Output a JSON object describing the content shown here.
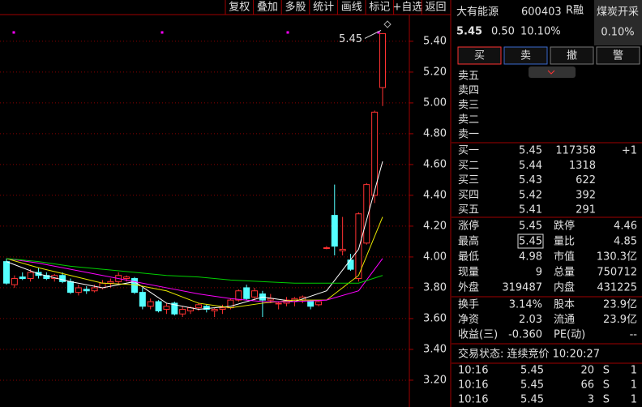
{
  "toolbar": [
    "复权",
    "叠加",
    "多股",
    "统计",
    "画线",
    "标记",
    "+自选",
    "返回"
  ],
  "chart_data": {
    "type": "candlestick",
    "ylim": [
      3.026,
      5.668
    ],
    "yticks": [
      {
        "value": 3.2,
        "label": "3.20"
      },
      {
        "value": 3.4,
        "label": "3.40"
      },
      {
        "value": 3.6,
        "label": "3.60"
      },
      {
        "value": 3.8,
        "label": "3.80"
      },
      {
        "value": 4.0,
        "label": "4.00"
      },
      {
        "value": 4.2,
        "label": "4.20"
      },
      {
        "value": 4.4,
        "label": "4.40"
      },
      {
        "value": 4.6,
        "label": "4.60"
      },
      {
        "value": 4.8,
        "label": "4.80"
      },
      {
        "value": 5.0,
        "label": "5.00"
      },
      {
        "value": 5.2,
        "label": "5.20"
      },
      {
        "value": 5.4,
        "label": "5.40"
      }
    ],
    "up_color": "#ff3232",
    "down_color": "#54ffff",
    "ohlc": [
      [
        3.97,
        3.99,
        3.82,
        3.83
      ],
      [
        3.82,
        3.88,
        3.8,
        3.86
      ],
      [
        3.87,
        3.9,
        3.85,
        3.86
      ],
      [
        3.86,
        3.92,
        3.84,
        3.9
      ],
      [
        3.9,
        3.93,
        3.86,
        3.88
      ],
      [
        3.88,
        3.9,
        3.85,
        3.86
      ],
      [
        3.86,
        3.89,
        3.84,
        3.88
      ],
      [
        3.88,
        3.9,
        3.83,
        3.84
      ],
      [
        3.84,
        3.86,
        3.76,
        3.77
      ],
      [
        3.77,
        3.82,
        3.75,
        3.8
      ],
      [
        3.79,
        3.81,
        3.76,
        3.78
      ],
      [
        3.78,
        3.82,
        3.77,
        3.8
      ],
      [
        3.8,
        3.85,
        3.79,
        3.83
      ],
      [
        3.83,
        3.86,
        3.8,
        3.84
      ],
      [
        3.84,
        3.9,
        3.82,
        3.88
      ],
      [
        3.86,
        3.88,
        3.84,
        3.87
      ],
      [
        3.86,
        3.87,
        3.76,
        3.77
      ],
      [
        3.77,
        3.8,
        3.66,
        3.68
      ],
      [
        3.68,
        3.73,
        3.66,
        3.71
      ],
      [
        3.71,
        3.72,
        3.64,
        3.65
      ],
      [
        3.66,
        3.7,
        3.63,
        3.68
      ],
      [
        3.7,
        3.71,
        3.62,
        3.63
      ],
      [
        3.63,
        3.68,
        3.61,
        3.66
      ],
      [
        3.65,
        3.68,
        3.63,
        3.67
      ],
      [
        3.67,
        3.7,
        3.65,
        3.69
      ],
      [
        3.68,
        3.69,
        3.64,
        3.66
      ],
      [
        3.65,
        3.67,
        3.61,
        3.66
      ],
      [
        3.66,
        3.69,
        3.63,
        3.67
      ],
      [
        3.67,
        3.73,
        3.66,
        3.72
      ],
      [
        3.72,
        3.79,
        3.71,
        3.78
      ],
      [
        3.8,
        3.82,
        3.72,
        3.73
      ],
      [
        3.74,
        3.8,
        3.72,
        3.78
      ],
      [
        3.76,
        3.78,
        3.61,
        3.72
      ],
      [
        3.72,
        3.76,
        3.7,
        3.73
      ],
      [
        3.7,
        3.71,
        3.66,
        3.7
      ],
      [
        3.7,
        3.74,
        3.68,
        3.72
      ],
      [
        3.72,
        3.74,
        3.68,
        3.73
      ],
      [
        3.72,
        3.75,
        3.7,
        3.74
      ],
      [
        3.71,
        3.72,
        3.66,
        3.68
      ],
      [
        3.69,
        3.72,
        3.68,
        3.71
      ],
      [
        4.06,
        4.07,
        4.05,
        4.06
      ],
      [
        4.27,
        4.47,
        4.01,
        4.07
      ],
      [
        4.04,
        4.26,
        4.01,
        4.05
      ],
      [
        3.98,
        4.02,
        3.91,
        3.92
      ],
      [
        3.86,
        4.29,
        3.84,
        4.28
      ],
      [
        4.09,
        4.48,
        4.08,
        4.47
      ],
      [
        4.4,
        4.95,
        4.35,
        4.94
      ],
      [
        5.1,
        5.45,
        4.98,
        5.45
      ]
    ],
    "ma_lines": [
      {
        "color": "#ffffff",
        "x": [
          0,
          4,
          8,
          12,
          16,
          20,
          24,
          28,
          32,
          36,
          40,
          44,
          47
        ],
        "values": [
          3.97,
          3.89,
          3.84,
          3.8,
          3.84,
          3.7,
          3.66,
          3.68,
          3.74,
          3.71,
          3.78,
          4.05,
          4.62
        ]
      },
      {
        "color": "#e8e800",
        "x": [
          0,
          4,
          8,
          12,
          16,
          20,
          24,
          28,
          32,
          36,
          40,
          44,
          47
        ],
        "values": [
          3.99,
          3.93,
          3.88,
          3.83,
          3.82,
          3.78,
          3.7,
          3.67,
          3.7,
          3.72,
          3.72,
          3.88,
          4.26
        ]
      },
      {
        "color": "#ff00ff",
        "x": [
          0,
          4,
          8,
          12,
          16,
          20,
          24,
          28,
          32,
          36,
          40,
          44,
          47
        ],
        "values": [
          3.99,
          3.96,
          3.92,
          3.88,
          3.84,
          3.8,
          3.76,
          3.73,
          3.71,
          3.71,
          3.72,
          3.78,
          3.99
        ]
      },
      {
        "color": "#00d000",
        "x": [
          0,
          4,
          8,
          12,
          16,
          20,
          24,
          28,
          32,
          36,
          40,
          44,
          47
        ],
        "values": [
          3.99,
          3.97,
          3.94,
          3.92,
          3.9,
          3.88,
          3.87,
          3.85,
          3.84,
          3.83,
          3.83,
          3.83,
          3.88
        ]
      }
    ],
    "annotation": 5.45
  },
  "quote": {
    "name": "大有能源",
    "code": "600403",
    "tag": "R融",
    "sector": "煤炭开采",
    "sector_change": "0.10%",
    "price": "5.45",
    "change": "0.50",
    "change_pct": "10.10%",
    "buttons": [
      "买",
      "卖",
      "撤",
      "警"
    ],
    "asks": [
      "卖五",
      "卖四",
      "卖三",
      "卖二",
      "卖一"
    ],
    "bids": [
      [
        "买一",
        "5.45",
        "117358",
        "+1"
      ],
      [
        "买二",
        "5.44",
        "1318"
      ],
      [
        "买三",
        "5.43",
        "622"
      ],
      [
        "买四",
        "5.42",
        "392"
      ],
      [
        "买五",
        "5.41",
        "291"
      ]
    ],
    "stats": [
      [
        "涨停",
        "5.45",
        "跌停",
        "4.46"
      ],
      [
        "最高",
        "5.45",
        "量比",
        "4.85"
      ],
      [
        "最低",
        "4.98",
        "市值",
        "130.3亿"
      ],
      [
        "现量",
        "9",
        "总量",
        "750712"
      ],
      [
        "外盘",
        "319487",
        "内盘",
        "431225"
      ]
    ],
    "stats2": [
      [
        "换手",
        "3.14%",
        "股本",
        "23.9亿"
      ],
      [
        "净资",
        "2.03",
        "流通",
        "23.9亿"
      ],
      [
        "收益(三)",
        "-0.360",
        "PE(动)",
        "--"
      ]
    ],
    "status": "交易状态: 连续竞价 10:20:27",
    "ticks": [
      [
        "10:16",
        "5.45",
        "20",
        "S",
        "1"
      ],
      [
        "10:16",
        "5.45",
        "66",
        "S",
        "1"
      ],
      [
        "10:16",
        "5.45",
        "3",
        "S",
        "1"
      ]
    ]
  }
}
